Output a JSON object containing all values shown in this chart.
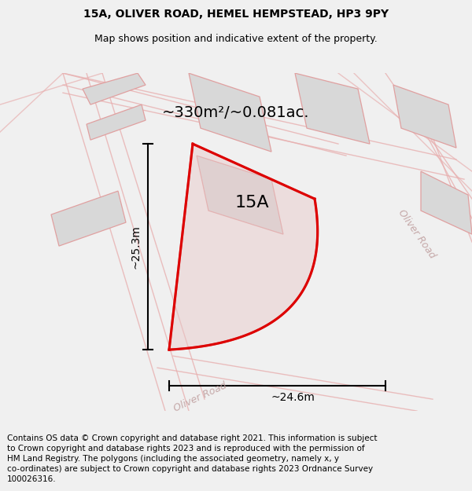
{
  "title_line1": "15A, OLIVER ROAD, HEMEL HEMPSTEAD, HP3 9PY",
  "title_line2": "Map shows position and indicative extent of the property.",
  "area_label": "~330m²/~0.081ac.",
  "plot_label": "15A",
  "width_label": "~24.6m",
  "height_label": "~25.3m",
  "road_label_bottom": "Oliver Road",
  "road_label_right": "Oliver Road",
  "footer_lines": [
    "Contains OS data © Crown copyright and database right 2021. This information is subject to Crown copyright and database rights 2023 and is reproduced with the permission of",
    "HM Land Registry. The polygons (including the associated geometry, namely x, y co-ordinates) are subject to Crown copyright and database rights 2023 Ordnance Survey",
    "100026316."
  ],
  "bg_color": "#f0f0f0",
  "map_bg_color": "#f8f8f8",
  "building_fill": "#d8d8d8",
  "building_edge": "#e0a0a0",
  "road_color": "#e8b0b0",
  "plot_fill": "#e8c8c8",
  "plot_edge": "#dd0000",
  "title_fontsize": 10,
  "subtitle_fontsize": 9,
  "area_fontsize": 14,
  "plot_label_fontsize": 16,
  "measure_fontsize": 10,
  "road_label_fontsize": 9,
  "footer_fontsize": 7.5
}
